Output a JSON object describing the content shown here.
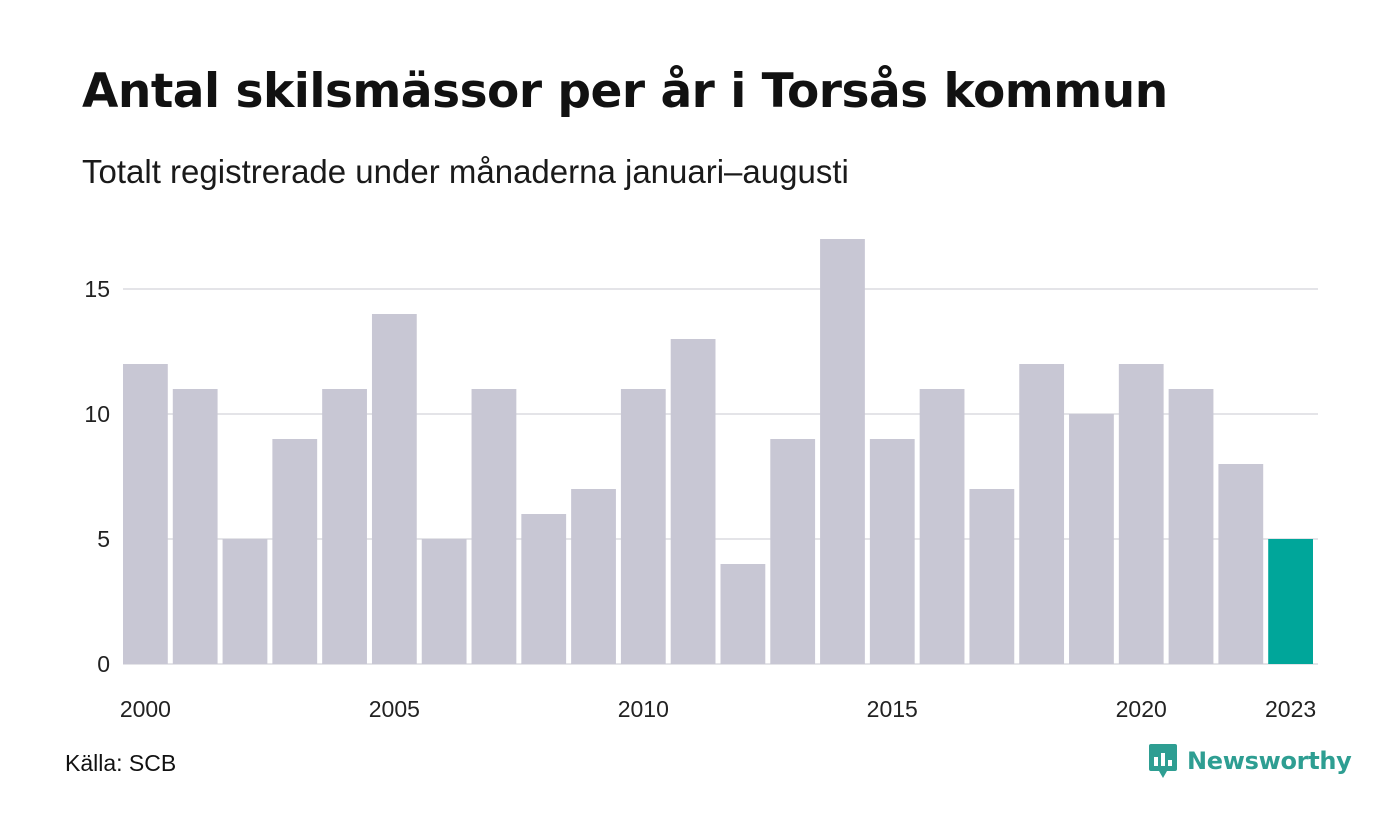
{
  "title": "Antal skilsmässor per år i Torsås kommun",
  "subtitle": "Totalt registrerade under månaderna januari–augusti",
  "source": "Källa: SCB",
  "brand": {
    "name": "Newsworthy",
    "icon": "newsworthy-logo-icon",
    "color": "#2e9e92"
  },
  "colors": {
    "bar": "#c8c7d4",
    "highlight": "#00a69a",
    "grid": "#e4e4e8"
  },
  "chart_data": {
    "type": "bar",
    "categories": [
      "2000",
      "2001",
      "2002",
      "2003",
      "2004",
      "2005",
      "2006",
      "2007",
      "2008",
      "2009",
      "2010",
      "2011",
      "2012",
      "2013",
      "2014",
      "2015",
      "2016",
      "2017",
      "2018",
      "2019",
      "2020",
      "2021",
      "2022",
      "2023"
    ],
    "values": [
      12,
      11,
      5,
      9,
      11,
      14,
      5,
      11,
      6,
      7,
      11,
      13,
      4,
      9,
      17,
      9,
      11,
      7,
      12,
      10,
      12,
      11,
      8,
      5
    ],
    "highlight_category": "2023",
    "x_tick_labels": [
      "2000",
      "2005",
      "2010",
      "2015",
      "2020",
      "2023"
    ],
    "y_ticks": [
      0,
      5,
      10,
      15
    ],
    "ylim": [
      0,
      17
    ],
    "xlabel": "",
    "ylabel": "",
    "grid": true,
    "legend": "none"
  }
}
